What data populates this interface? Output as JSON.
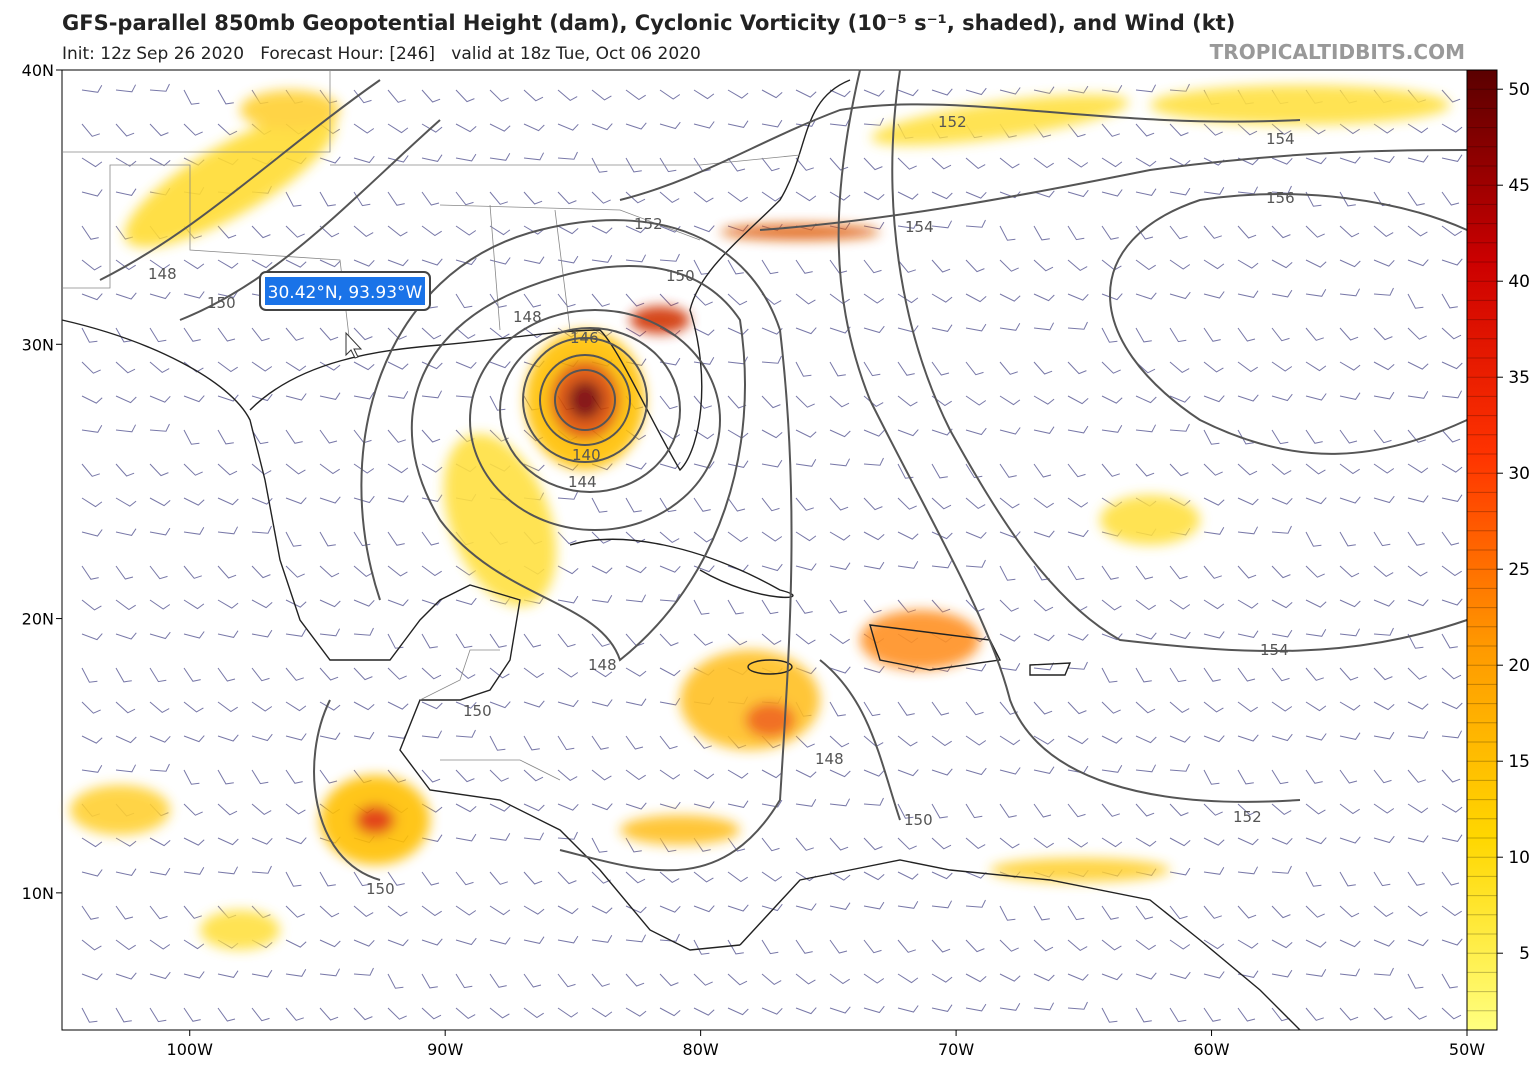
{
  "header": {
    "title": "GFS-parallel 850mb Geopotential Height (dam), Cyclonic Vorticity (10⁻⁵ s⁻¹, shaded), and Wind (kt)",
    "subtitle": "Init: 12z Sep 26 2020   Forecast Hour: [246]   valid at 18z Tue, Oct 06 2020",
    "watermark": "TROPICALTIDBITS.COM"
  },
  "map": {
    "xlim": [
      -105,
      -50
    ],
    "ylim": [
      5,
      40
    ],
    "lat_ticks": [
      {
        "value": 40,
        "label": "40N"
      },
      {
        "value": 30,
        "label": "30N"
      },
      {
        "value": 20,
        "label": "20N"
      },
      {
        "value": 10,
        "label": "10N"
      }
    ],
    "lon_ticks": [
      {
        "value": -100,
        "label": "100W"
      },
      {
        "value": -90,
        "label": "90W"
      },
      {
        "value": -80,
        "label": "80W"
      },
      {
        "value": -70,
        "label": "70W"
      },
      {
        "value": -60,
        "label": "60W"
      },
      {
        "value": -50,
        "label": "50W"
      }
    ],
    "tooltip": "30.42°N, 93.93°W",
    "contour_labels": [
      152,
      154,
      156,
      154,
      152,
      150,
      148,
      150,
      148,
      146,
      140,
      144,
      148,
      150,
      148,
      150,
      150,
      154,
      152
    ]
  },
  "colorbar": {
    "lim": [
      1,
      51
    ],
    "ticks": [
      5,
      10,
      15,
      20,
      25,
      30,
      35,
      40,
      45,
      50
    ]
  }
}
